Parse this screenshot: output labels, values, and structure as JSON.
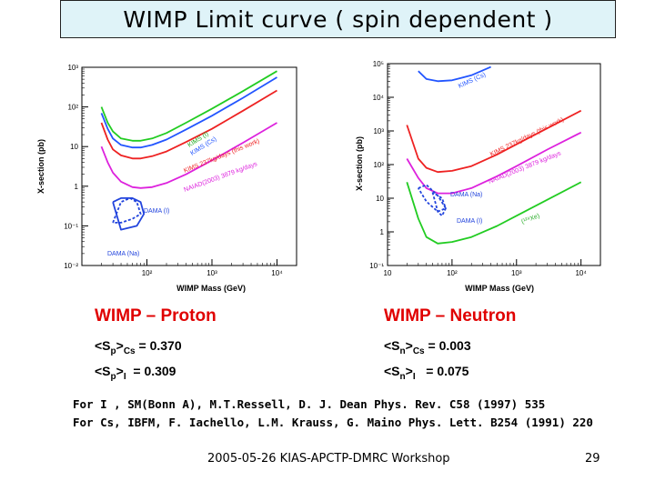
{
  "slide": {
    "title": "WIMP Limit curve ( spin dependent )",
    "footer": "2005-05-26 KIAS-APCTP-DMRC Workshop",
    "page_number": "29",
    "references": [
      "For I , SM(Bonn A), M.T.Ressell, D. J. Dean Phys. Rev. C58 (1997) 535",
      "For Cs, IBFM, F. Iachello, L.M. Krauss, G. Maino  Phys. Lett. B254 (1991) 220"
    ]
  },
  "proton": {
    "heading": "WIMP – Proton",
    "cs_label": "<S",
    "cs_sub1": "p",
    "cs_mid": ">",
    "cs_sub2": "Cs",
    "cs_value": " = 0.370",
    "i_label": "<S",
    "i_sub1": "p",
    "i_mid": ">",
    "i_sub2": "I",
    "i_value": "  = 0.309"
  },
  "neutron": {
    "heading": "WIMP – Neutron",
    "cs_label": "<S",
    "cs_sub1": "n",
    "cs_mid": ">",
    "cs_sub2": "Cs",
    "cs_value": " = 0.003",
    "i_label": "<S",
    "i_sub1": "n",
    "i_mid": ">",
    "i_sub2": "I",
    "i_value": "   = 0.075"
  },
  "chart_data": [
    {
      "type": "line",
      "title": "WIMP – Proton",
      "xlabel": "WIMP Mass (GeV)",
      "ylabel": "X-section (pb)",
      "xscale": "log",
      "yscale": "log",
      "xlim": [
        10,
        20000
      ],
      "ylim": [
        0.01,
        1000
      ],
      "x_ticks": [
        "10²",
        "10³",
        "10⁴"
      ],
      "y_ticks": [
        "10⁻²",
        "10⁻¹",
        "1",
        "10",
        "10²",
        "10³"
      ],
      "series": [
        {
          "name": "KIMS (I)",
          "color": "#22cc22",
          "style": "solid",
          "x": [
            20,
            25,
            30,
            40,
            60,
            80,
            120,
            200,
            400,
            1000,
            3000,
            10000
          ],
          "y": [
            100,
            40,
            24,
            16,
            14,
            14,
            16,
            22,
            40,
            90,
            250,
            800
          ]
        },
        {
          "name": "KIMS (Cs)",
          "color": "#2255ff",
          "style": "solid",
          "x": [
            20,
            25,
            30,
            40,
            60,
            80,
            120,
            200,
            400,
            1000,
            3000,
            10000
          ],
          "y": [
            70,
            28,
            16,
            11,
            9.5,
            9.5,
            11,
            15,
            27,
            60,
            170,
            560
          ]
        },
        {
          "name": "KIMS 237kg·days (this work)",
          "color": "#ee2222",
          "style": "solid",
          "x": [
            20,
            25,
            30,
            40,
            60,
            80,
            120,
            200,
            400,
            1000,
            3000,
            10000
          ],
          "y": [
            40,
            15,
            8.5,
            6,
            5,
            5,
            5.7,
            7.5,
            13,
            28,
            80,
            260
          ]
        },
        {
          "name": "NAIAD(2003) 3879 kg·days",
          "color": "#dd22dd",
          "style": "solid",
          "x": [
            20,
            25,
            30,
            40,
            60,
            80,
            120,
            200,
            400,
            1000,
            3000,
            10000
          ],
          "y": [
            10,
            4,
            2.2,
            1.3,
            0.95,
            0.9,
            0.95,
            1.2,
            2,
            4.5,
            12.5,
            40
          ]
        },
        {
          "name": "DAMA (I)",
          "color": "#2244dd",
          "style": "dashed",
          "x": [
            30,
            40,
            55,
            70,
            80,
            60,
            40,
            30
          ],
          "y": [
            0.12,
            0.4,
            0.5,
            0.4,
            0.2,
            0.15,
            0.12,
            0.12
          ]
        },
        {
          "name": "DAMA (Na)",
          "color": "#2244dd",
          "style": "solid",
          "x": [
            30,
            40,
            60,
            80,
            90,
            70,
            40,
            30
          ],
          "y": [
            0.4,
            0.5,
            0.5,
            0.4,
            0.2,
            0.1,
            0.08,
            0.4
          ]
        }
      ],
      "annotations": [
        "KIMS (I)",
        "KIMS (Cs)",
        "KIMS 237kg/days (this work)",
        "NAIAD(2003) 3879 kg/days",
        "DAMA (I)",
        "DAMA (Na)"
      ]
    },
    {
      "type": "line",
      "title": "WIMP – Neutron",
      "xlabel": "WIMP Mass (GeV)",
      "ylabel": "X-section (pb)",
      "xscale": "log",
      "yscale": "log",
      "xlim": [
        10,
        20000
      ],
      "ylim": [
        0.1,
        100000
      ],
      "x_ticks": [
        "10",
        "10²",
        "10³",
        "10⁴"
      ],
      "y_ticks": [
        "10⁻¹",
        "1",
        "10",
        "10²",
        "10³",
        "10⁴",
        "10⁵"
      ],
      "series": [
        {
          "name": "KIMS (Cs)",
          "color": "#2255ff",
          "style": "solid",
          "x": [
            30,
            40,
            60,
            100,
            200,
            400
          ],
          "y": [
            60000,
            35000,
            30000,
            32000,
            45000,
            80000
          ]
        },
        {
          "name": "KIMS 237kg·days (this work)",
          "color": "#ee2222",
          "style": "solid",
          "x": [
            20,
            30,
            40,
            60,
            100,
            200,
            500,
            1000,
            3000,
            10000
          ],
          "y": [
            1500,
            150,
            80,
            60,
            65,
            90,
            200,
            400,
            1200,
            4000
          ]
        },
        {
          "name": "NAIAD(2003) 3879 kg·days",
          "color": "#dd22dd",
          "style": "solid",
          "x": [
            20,
            30,
            40,
            60,
            100,
            200,
            500,
            1000,
            3000,
            10000
          ],
          "y": [
            150,
            40,
            20,
            14,
            14,
            20,
            45,
            90,
            280,
            900
          ]
        },
        {
          "name": "(¹²⁹Xe)",
          "color": "#22cc22",
          "style": "solid",
          "x": [
            20,
            30,
            40,
            60,
            100,
            200,
            500,
            1000,
            3000,
            10000
          ],
          "y": [
            30,
            2.5,
            0.7,
            0.45,
            0.5,
            0.7,
            1.5,
            3,
            9,
            30
          ]
        },
        {
          "name": "DAMA (Na)",
          "color": "#2244dd",
          "style": "dashed",
          "x": [
            30,
            40,
            60,
            80,
            60,
            40,
            30
          ],
          "y": [
            20,
            25,
            12,
            5,
            4,
            8,
            20
          ]
        },
        {
          "name": "DAMA (I)",
          "color": "#2244dd",
          "style": "dashed",
          "x": [
            50,
            60,
            70,
            80,
            70,
            50
          ],
          "y": [
            15,
            4,
            3,
            5,
            10,
            15
          ]
        }
      ],
      "annotations": [
        "KIMS (Cs)",
        "KIMS 237kg/days (this work)",
        "NAIAD(2003) 3879 kg/days",
        "DAMA (Na)",
        "DAMA (I)",
        "(¹²⁹Xe)"
      ]
    }
  ]
}
